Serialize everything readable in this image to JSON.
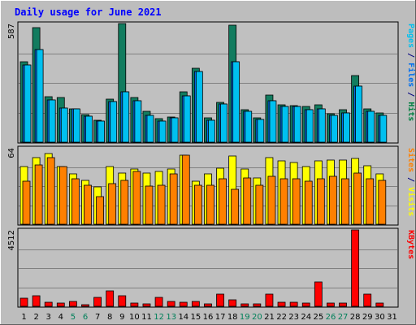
{
  "chart_data": {
    "title": "Daily usage for June 2021",
    "type": "bar",
    "categories": [
      "1",
      "2",
      "3",
      "4",
      "5",
      "6",
      "7",
      "8",
      "9",
      "10",
      "11",
      "12",
      "13",
      "14",
      "15",
      "16",
      "17",
      "18",
      "19",
      "20",
      "21",
      "22",
      "23",
      "24",
      "25",
      "26",
      "27",
      "28",
      "29",
      "30",
      "31"
    ],
    "weekend_days": [
      "5",
      "6",
      "12",
      "13",
      "19",
      "20",
      "26",
      "27"
    ],
    "grid": true,
    "panels": [
      {
        "name": "hits-files-pages",
        "ymax_label": "587",
        "ymax": 587,
        "side_labels": [
          {
            "text": "Pages",
            "color": "#00c0f0"
          },
          {
            "text": " / ",
            "color": "#000080"
          },
          {
            "text": "Files",
            "color": "#0070f0"
          },
          {
            "text": " / ",
            "color": "#000080"
          },
          {
            "text": "Hits",
            "color": "#008040"
          }
        ],
        "series": [
          {
            "name": "Hits",
            "color": "#127c5f",
            "values": [
              400,
              566,
              225,
              220,
              165,
              135,
              110,
              215,
              587,
              220,
              152,
              115,
              125,
              250,
              366,
              120,
              198,
              577,
              160,
              120,
              235,
              183,
              181,
              175,
              183,
              139,
              160,
              330,
              166,
              143,
              0
            ]
          },
          {
            "name": "Files",
            "color": "#0070f0",
            "values": [
              382,
              460,
              210,
              170,
              164,
              130,
              104,
              200,
              250,
              206,
              132,
              105,
              120,
              228,
              348,
              108,
              189,
              398,
              152,
              112,
              205,
              176,
              177,
              160,
              165,
              131,
              146,
              279,
              154,
              132,
              0
            ]
          },
          {
            "name": "Pages",
            "color": "#00c0f0",
            "values": [
              382,
              460,
              210,
              170,
              164,
              130,
              104,
              200,
              250,
              206,
              132,
              105,
              120,
              228,
              348,
              108,
              189,
              398,
              152,
              112,
              205,
              176,
              177,
              160,
              165,
              131,
              146,
              279,
              154,
              132,
              0
            ]
          }
        ]
      },
      {
        "name": "visits-sites",
        "ymax_label": "64",
        "ymax": 64,
        "side_labels": [
          {
            "text": "Sites",
            "color": "#ff8000"
          },
          {
            "text": " / ",
            "color": "#000080"
          },
          {
            "text": "Visits",
            "color": "#ffff00"
          }
        ],
        "series": [
          {
            "name": "Visits",
            "color": "#ffff00",
            "values": [
              48,
              56,
              59,
              48,
              42,
              37,
              31,
              48,
              43,
              46,
              43,
              44,
              46,
              58,
              36,
              42,
              47,
              57,
              46,
              39,
              56,
              53,
              52,
              48,
              53,
              54,
              54,
              55,
              49,
              42,
              0
            ]
          },
          {
            "name": "Sites",
            "color": "#ff8000",
            "values": [
              36,
              50,
              56,
              48,
              38,
              33,
              23,
              34,
              37,
              44,
              32,
              33,
              42,
              58,
              33,
              33,
              38,
              29,
              39,
              33,
              40,
              38,
              38,
              36,
              38,
              40,
              38,
              43,
              38,
              37,
              0
            ]
          }
        ]
      },
      {
        "name": "kbytes",
        "ymax_label": "4512",
        "ymax": 4512,
        "side_labels": [
          {
            "text": "KBytes",
            "color": "#ff0000"
          }
        ],
        "series": [
          {
            "name": "KBytes",
            "color": "#ff0000",
            "values": [
              460,
              640,
              230,
              200,
              310,
              100,
              510,
              910,
              630,
              200,
              120,
              520,
              290,
              250,
              300,
              130,
              700,
              390,
              130,
              150,
              700,
              250,
              220,
              200,
              1460,
              180,
              210,
              4512,
              700,
              170,
              0
            ]
          }
        ]
      }
    ]
  }
}
